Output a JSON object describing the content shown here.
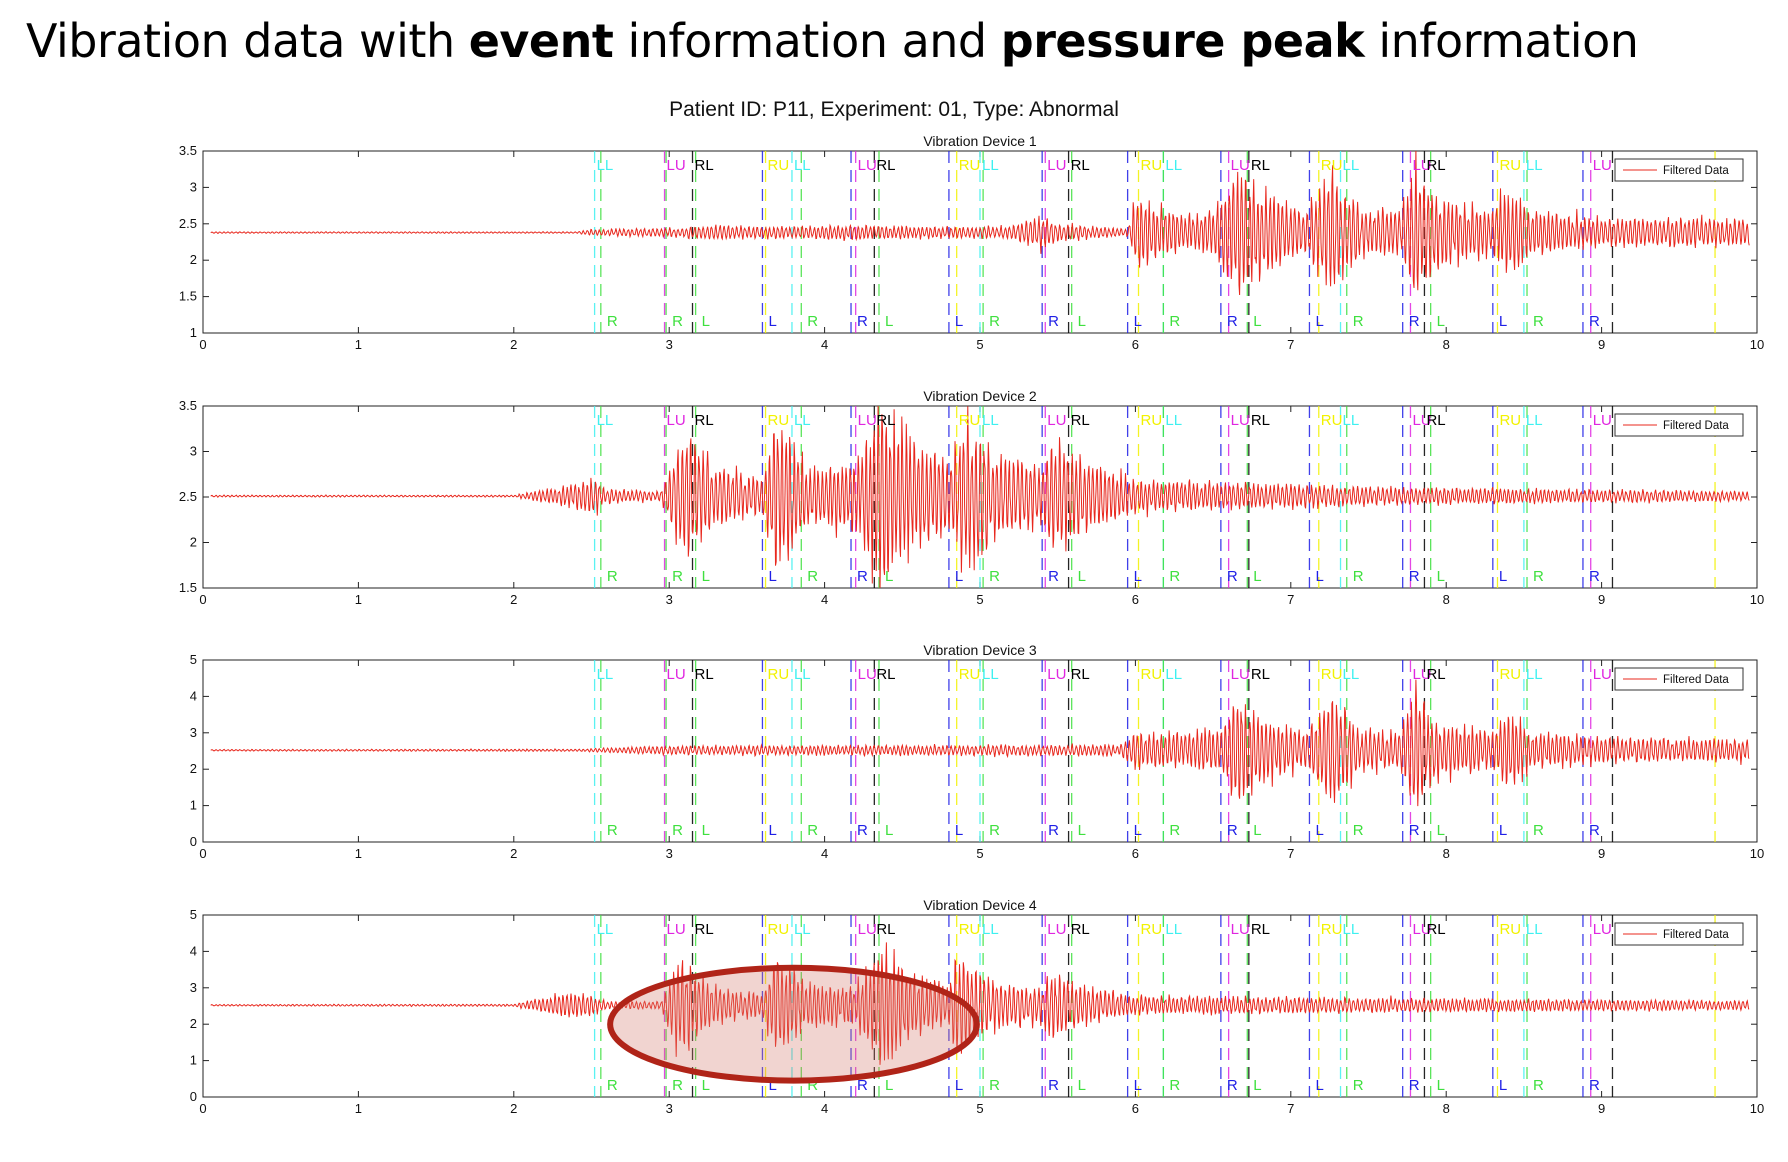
{
  "slide_title": {
    "part1": "Vibration data with ",
    "bold1": "event",
    "part2": " information and ",
    "bold2": "pressure peak",
    "part3": " information"
  },
  "figure_title": "Patient ID: P11, Experiment: 01, Type: Abnormal",
  "colors": {
    "signal": "#e8281e",
    "highlight_fill": "rgba(210,120,110,0.32)",
    "highlight_stroke": "#b02418",
    "LL": "#3ff0f0",
    "LU": "#e026e0",
    "RL": "#000000",
    "RU": "#f2f200",
    "R": "#3fe03f",
    "L": "#1f1fe6"
  },
  "highlight": {
    "panel": 3,
    "cx": 3.8,
    "cy": 2.0,
    "rx_data": 1.18,
    "ry_units": 1.55
  },
  "chart_data": [
    {
      "type": "line",
      "title": "Vibration Device 1",
      "xlim": [
        0,
        10
      ],
      "ylim": [
        1,
        3.5
      ],
      "xticks": [
        0,
        1,
        2,
        3,
        4,
        5,
        6,
        7,
        8,
        9,
        10
      ],
      "yticks": [
        1,
        1.5,
        2,
        2.5,
        3,
        3.5
      ],
      "ytick_labels": [
        "1",
        "1.5",
        "2",
        "2.5",
        "3",
        "3.5"
      ],
      "legend": {
        "label": "Filtered Data",
        "position": "top-right"
      },
      "series": [
        {
          "baseline": 2.38,
          "envelope": [
            [
              0,
              0.01
            ],
            [
              2.4,
              0.01
            ],
            [
              2.5,
              0.04
            ],
            [
              3.0,
              0.06
            ],
            [
              3.3,
              0.1
            ],
            [
              3.6,
              0.08
            ],
            [
              4.2,
              0.1
            ],
            [
              4.6,
              0.08
            ],
            [
              5.2,
              0.08
            ],
            [
              5.4,
              0.25
            ],
            [
              5.5,
              0.12
            ],
            [
              5.95,
              0.05
            ],
            [
              6.0,
              0.5
            ],
            [
              6.3,
              0.25
            ],
            [
              6.5,
              0.3
            ],
            [
              6.65,
              0.9
            ],
            [
              6.8,
              0.6
            ],
            [
              7.1,
              0.3
            ],
            [
              7.25,
              0.85
            ],
            [
              7.45,
              0.35
            ],
            [
              7.7,
              0.3
            ],
            [
              7.8,
              0.95
            ],
            [
              7.95,
              0.5
            ],
            [
              8.3,
              0.3
            ],
            [
              8.4,
              0.65
            ],
            [
              8.55,
              0.3
            ],
            [
              9.0,
              0.2
            ],
            [
              10.0,
              0.18
            ]
          ]
        }
      ]
    },
    {
      "type": "line",
      "title": "Vibration Device 2",
      "xlim": [
        0,
        10
      ],
      "ylim": [
        1.5,
        3.5
      ],
      "xticks": [
        0,
        1,
        2,
        3,
        4,
        5,
        6,
        7,
        8,
        9,
        10
      ],
      "yticks": [
        1.5,
        2,
        2.5,
        3,
        3.5
      ],
      "ytick_labels": [
        "1.5",
        "2",
        "2.5",
        "3",
        "3.5"
      ],
      "legend": {
        "label": "Filtered Data",
        "position": "top-right"
      },
      "series": [
        {
          "baseline": 2.51,
          "envelope": [
            [
              0,
              0.01
            ],
            [
              2.0,
              0.01
            ],
            [
              2.35,
              0.12
            ],
            [
              2.5,
              0.2
            ],
            [
              2.6,
              0.08
            ],
            [
              2.95,
              0.05
            ],
            [
              3.1,
              0.8
            ],
            [
              3.3,
              0.35
            ],
            [
              3.6,
              0.2
            ],
            [
              3.7,
              0.9
            ],
            [
              3.9,
              0.3
            ],
            [
              4.2,
              0.4
            ],
            [
              4.35,
              1.05
            ],
            [
              4.6,
              0.6
            ],
            [
              4.8,
              0.4
            ],
            [
              4.9,
              0.9
            ],
            [
              5.1,
              0.45
            ],
            [
              5.4,
              0.35
            ],
            [
              5.45,
              0.6
            ],
            [
              5.7,
              0.4
            ],
            [
              6.0,
              0.18
            ],
            [
              7.5,
              0.1
            ],
            [
              10.0,
              0.05
            ]
          ]
        }
      ]
    },
    {
      "type": "line",
      "title": "Vibration Device 3",
      "xlim": [
        0,
        10
      ],
      "ylim": [
        0,
        5
      ],
      "xticks": [
        0,
        1,
        2,
        3,
        4,
        5,
        6,
        7,
        8,
        9,
        10
      ],
      "yticks": [
        0,
        1,
        2,
        3,
        4,
        5
      ],
      "ytick_labels": [
        "0",
        "1",
        "2",
        "3",
        "4",
        "5"
      ],
      "legend": {
        "label": "Filtered Data",
        "position": "top-right"
      },
      "series": [
        {
          "baseline": 2.52,
          "envelope": [
            [
              0,
              0.02
            ],
            [
              2.4,
              0.03
            ],
            [
              3.0,
              0.12
            ],
            [
              5.9,
              0.15
            ],
            [
              6.0,
              0.5
            ],
            [
              6.3,
              0.45
            ],
            [
              6.55,
              0.6
            ],
            [
              6.65,
              1.5
            ],
            [
              6.8,
              0.9
            ],
            [
              7.1,
              0.5
            ],
            [
              7.25,
              1.6
            ],
            [
              7.45,
              0.6
            ],
            [
              7.7,
              0.5
            ],
            [
              7.8,
              1.8
            ],
            [
              7.95,
              0.8
            ],
            [
              8.3,
              0.5
            ],
            [
              8.4,
              1.2
            ],
            [
              8.55,
              0.5
            ],
            [
              9.0,
              0.35
            ],
            [
              10.0,
              0.3
            ]
          ]
        }
      ]
    },
    {
      "type": "line",
      "title": "Vibration Device 4",
      "xlim": [
        0,
        10
      ],
      "ylim": [
        0,
        5
      ],
      "xticks": [
        0,
        1,
        2,
        3,
        4,
        5,
        6,
        7,
        8,
        9,
        10
      ],
      "yticks": [
        0,
        1,
        2,
        3,
        4,
        5
      ],
      "ytick_labels": [
        "0",
        "1",
        "2",
        "3",
        "4",
        "5"
      ],
      "legend": {
        "label": "Filtered Data",
        "position": "top-right"
      },
      "series": [
        {
          "baseline": 2.52,
          "envelope": [
            [
              0,
              0.02
            ],
            [
              2.0,
              0.03
            ],
            [
              2.35,
              0.35
            ],
            [
              2.5,
              0.3
            ],
            [
              2.6,
              0.1
            ],
            [
              2.95,
              0.1
            ],
            [
              3.05,
              1.35
            ],
            [
              3.3,
              0.5
            ],
            [
              3.6,
              0.3
            ],
            [
              3.7,
              1.45
            ],
            [
              3.9,
              0.6
            ],
            [
              4.2,
              0.5
            ],
            [
              4.35,
              1.7
            ],
            [
              4.6,
              0.8
            ],
            [
              4.8,
              0.6
            ],
            [
              4.85,
              1.5
            ],
            [
              5.1,
              0.6
            ],
            [
              5.4,
              0.5
            ],
            [
              5.45,
              0.95
            ],
            [
              5.7,
              0.5
            ],
            [
              6.0,
              0.25
            ],
            [
              10.0,
              0.12
            ]
          ]
        }
      ]
    }
  ],
  "event_markers": {
    "top": [
      {
        "x": 2.52,
        "label": "LL",
        "type": "LL"
      },
      {
        "x": 2.97,
        "label": "LU",
        "type": "LU"
      },
      {
        "x": 3.15,
        "label": "RL",
        "type": "RL"
      },
      {
        "x": 3.62,
        "label": "RU",
        "type": "RU"
      },
      {
        "x": 3.79,
        "label": "LL",
        "type": "LL"
      },
      {
        "x": 4.2,
        "label": "LU",
        "type": "LU"
      },
      {
        "x": 4.32,
        "label": "RL",
        "type": "RL"
      },
      {
        "x": 4.85,
        "label": "RU",
        "type": "RU"
      },
      {
        "x": 5.0,
        "label": "LL",
        "type": "LL"
      },
      {
        "x": 5.42,
        "label": "LU",
        "type": "LU"
      },
      {
        "x": 5.57,
        "label": "RL",
        "type": "RL"
      },
      {
        "x": 6.02,
        "label": "RU",
        "type": "RU"
      },
      {
        "x": 6.18,
        "label": "LL",
        "type": "LL"
      },
      {
        "x": 6.6,
        "label": "LU",
        "type": "LU"
      },
      {
        "x": 6.73,
        "label": "RL",
        "type": "RL"
      },
      {
        "x": 7.18,
        "label": "RU",
        "type": "RU"
      },
      {
        "x": 7.32,
        "label": "LL",
        "type": "LL"
      },
      {
        "x": 7.77,
        "label": "LU",
        "type": "LU"
      },
      {
        "x": 7.86,
        "label": "RL",
        "type": "RL"
      },
      {
        "x": 8.33,
        "label": "RU",
        "type": "RU"
      },
      {
        "x": 8.5,
        "label": "LL",
        "type": "LL"
      },
      {
        "x": 8.93,
        "label": "LU",
        "type": "LU"
      },
      {
        "x": 9.07,
        "label": "RL",
        "type": "RL"
      },
      {
        "x": 9.73,
        "label": "RU",
        "type": "RU"
      }
    ],
    "bottom": [
      {
        "x": 2.56,
        "label": "R",
        "type": "R"
      },
      {
        "x": 2.98,
        "label": "R",
        "type": "R"
      },
      {
        "x": 3.17,
        "label": "L",
        "type": "R"
      },
      {
        "x": 3.6,
        "label": "L",
        "type": "L"
      },
      {
        "x": 3.85,
        "label": "R",
        "type": "R"
      },
      {
        "x": 4.17,
        "label": "R",
        "type": "L"
      },
      {
        "x": 4.35,
        "label": "L",
        "type": "R"
      },
      {
        "x": 4.8,
        "label": "L",
        "type": "L"
      },
      {
        "x": 5.02,
        "label": "R",
        "type": "R"
      },
      {
        "x": 5.4,
        "label": "R",
        "type": "L"
      },
      {
        "x": 5.59,
        "label": "L",
        "type": "R"
      },
      {
        "x": 5.95,
        "label": "L",
        "type": "L"
      },
      {
        "x": 6.18,
        "label": "R",
        "type": "R"
      },
      {
        "x": 6.55,
        "label": "R",
        "type": "L"
      },
      {
        "x": 6.72,
        "label": "L",
        "type": "R"
      },
      {
        "x": 7.12,
        "label": "L",
        "type": "L"
      },
      {
        "x": 7.36,
        "label": "R",
        "type": "R"
      },
      {
        "x": 7.72,
        "label": "R",
        "type": "L"
      },
      {
        "x": 7.9,
        "label": "L",
        "type": "R"
      },
      {
        "x": 8.3,
        "label": "L",
        "type": "L"
      },
      {
        "x": 8.52,
        "label": "R",
        "type": "R"
      },
      {
        "x": 8.88,
        "label": "R",
        "type": "L"
      }
    ]
  }
}
